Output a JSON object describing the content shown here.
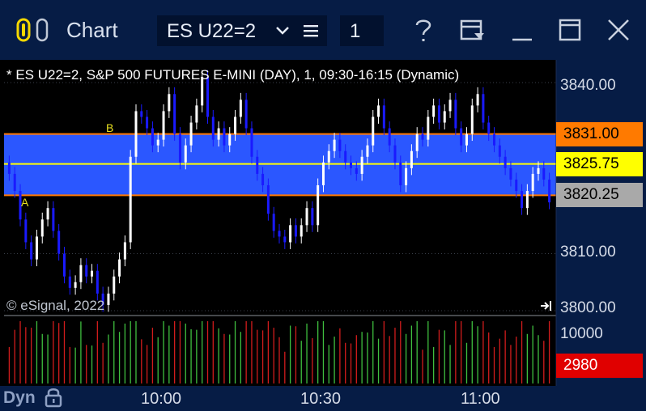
{
  "window": {
    "title": "Chart",
    "symbol": "ES U22=2",
    "interval": "1",
    "icons": [
      "app-logo-icon",
      "chevron-down-icon",
      "menu-icon",
      "help-icon",
      "form-icon",
      "minimize-icon",
      "maximize-icon",
      "close-icon"
    ]
  },
  "chart": {
    "title": "* ES U22=2, S&P 500 FUTURES E-MINI (DAY), 1, 09:30-16:15 (Dynamic)",
    "copyright": "© eSignal, 2022",
    "y_ticks": [
      "3840.00",
      "3810.00",
      "3800.00"
    ],
    "volume_tick": "10000",
    "x_ticks": [
      "10:00",
      "10:30",
      "11:00"
    ],
    "badges": {
      "upper": {
        "text": "3831.00",
        "color": "#ff7a00"
      },
      "mid": {
        "text": "3825.75",
        "color": "#ffff00"
      },
      "lower": {
        "text": "3820.25",
        "color": "#a9a9a9"
      },
      "volume": {
        "text": "2980",
        "color": "#e00000"
      }
    },
    "labels": {
      "a": "A",
      "b": "B"
    },
    "mode": "Dyn"
  },
  "chart_data": {
    "type": "candlestick",
    "y_ticks": [
      3840,
      3810,
      3800
    ],
    "levels": {
      "upper": 3831.0,
      "mid": 3825.75,
      "lower": 3820.25
    },
    "band_color": "#2b57ff",
    "volume_last": 2980,
    "volume_max_tick": 10000,
    "x_labels": [
      "10:00",
      "10:30",
      "11:00"
    ],
    "closes": [
      3824,
      3821,
      3816,
      3812,
      3809,
      3813,
      3816,
      3818,
      3814,
      3810,
      3806,
      3804,
      3805,
      3808,
      3806,
      3807,
      3803,
      3801,
      3803,
      3806,
      3809,
      3812,
      3827,
      3835,
      3834,
      3832,
      3829,
      3830,
      3835,
      3838,
      3831,
      3826,
      3829,
      3833,
      3836,
      3841,
      3834,
      3830,
      3832,
      3829,
      3831,
      3834,
      3837,
      3832,
      3827,
      3824,
      3822,
      3817,
      3814,
      3813,
      3812,
      3815,
      3813,
      3815,
      3818,
      3815,
      3822,
      3826,
      3828,
      3830,
      3828,
      3826,
      3825,
      3824,
      3827,
      3829,
      3834,
      3836,
      3832,
      3829,
      3826,
      3822,
      3825,
      3828,
      3831,
      3830,
      3834,
      3836,
      3833,
      3835,
      3837,
      3832,
      3829,
      3831,
      3836,
      3838,
      3833,
      3831,
      3829,
      3827,
      3825,
      3823,
      3821,
      3818,
      3821,
      3824,
      3825,
      3823,
      3819
    ]
  }
}
